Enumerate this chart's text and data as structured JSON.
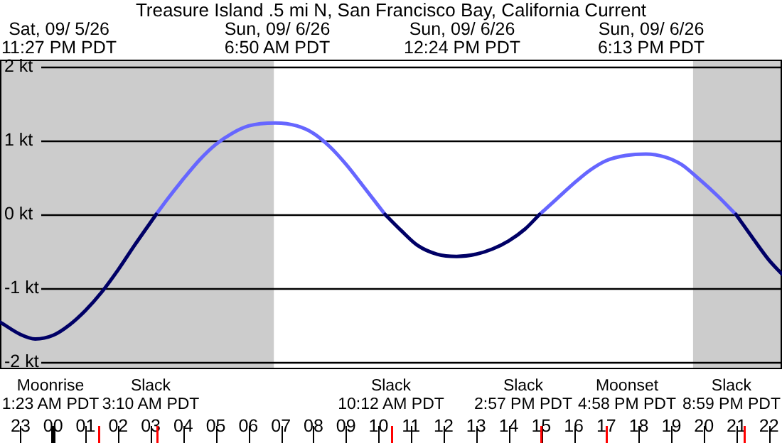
{
  "chart_data": {
    "type": "line",
    "title": "Treasure Island .5 mi N, San Francisco Bay, California Current",
    "series": [
      {
        "color": "#000066",
        "x": [
          "--09-05T22:22",
          "--09-05T23:00",
          "--09-05T23:27",
          "--09-06T00:00",
          "--09-06T00:30",
          "--09-06T01:00",
          "--09-06T01:30",
          "--09-06T02:00",
          "--09-06T02:30",
          "--09-06T03:10",
          "--09-06T06:00",
          "--09-06T10:12",
          "--09-06T10:42",
          "--09-06T11:12",
          "--09-06T11:48",
          "--09-06T12:24",
          "--09-06T13:00",
          "--09-06T13:30",
          "--09-06T14:00",
          "--09-06T14:30",
          "--09-06T14:57",
          "--09-06T18:00",
          "--09-06T20:59",
          "--09-06T21:30",
          "--09-06T22:00",
          "--09-06T22:24"
        ],
        "values": [
          -1.46,
          -1.63,
          -1.69,
          -1.64,
          -1.5,
          -1.3,
          -1.05,
          -0.75,
          -0.42,
          0,
          null,
          0,
          -0.22,
          -0.42,
          -0.54,
          -0.57,
          -0.54,
          -0.47,
          -0.36,
          -0.2,
          0,
          null,
          0,
          -0.32,
          -0.62,
          -0.81
        ]
      },
      {
        "color": "#6666ff",
        "x": [
          "--09-06T03:10",
          "--09-06T03:30",
          "--09-06T04:00",
          "--09-06T04:30",
          "--09-06T05:00",
          "--09-06T05:30",
          "--09-06T06:00",
          "--09-06T06:50",
          "--09-06T07:30",
          "--09-06T08:00",
          "--09-06T08:30",
          "--09-06T09:00",
          "--09-06T09:30",
          "--09-06T10:12",
          "--09-06T12:00",
          "--09-06T14:57",
          "--09-06T15:30",
          "--09-06T16:00",
          "--09-06T16:30",
          "--09-06T17:00",
          "--09-06T17:36",
          "--09-06T18:13",
          "--09-06T18:48",
          "--09-06T19:18",
          "--09-06T19:48",
          "--09-06T20:24",
          "--09-06T20:59"
        ],
        "values": [
          0,
          0.2,
          0.48,
          0.74,
          0.95,
          1.1,
          1.2,
          1.24,
          1.2,
          1.1,
          0.92,
          0.68,
          0.4,
          0,
          null,
          0,
          0.22,
          0.42,
          0.6,
          0.73,
          0.8,
          0.82,
          0.78,
          0.68,
          0.5,
          0.26,
          0
        ]
      }
    ],
    "xlim": [
      "--09-05T22:22",
      "--09-06T22:24"
    ],
    "xticks": [
      {
        "value": "--09-05T23:00",
        "label": "23"
      },
      {
        "value": "--09-06T00:00",
        "label": "00"
      },
      {
        "value": "--09-06T01:00",
        "label": "01"
      },
      {
        "value": "--09-06T02:00",
        "label": "02"
      },
      {
        "value": "--09-06T03:00",
        "label": "03"
      },
      {
        "value": "--09-06T04:00",
        "label": "04"
      },
      {
        "value": "--09-06T05:00",
        "label": "05"
      },
      {
        "value": "--09-06T06:00",
        "label": "06"
      },
      {
        "value": "--09-06T07:00",
        "label": "07"
      },
      {
        "value": "--09-06T08:00",
        "label": "08"
      },
      {
        "value": "--09-06T09:00",
        "label": "09"
      },
      {
        "value": "--09-06T10:00",
        "label": "10"
      },
      {
        "value": "--09-06T11:00",
        "label": "11"
      },
      {
        "value": "--09-06T12:00",
        "label": "12"
      },
      {
        "value": "--09-06T13:00",
        "label": "13"
      },
      {
        "value": "--09-06T14:00",
        "label": "14"
      },
      {
        "value": "--09-06T15:00",
        "label": "15"
      },
      {
        "value": "--09-06T16:00",
        "label": "16"
      },
      {
        "value": "--09-06T17:00",
        "label": "17"
      },
      {
        "value": "--09-06T18:00",
        "label": "18"
      },
      {
        "value": "--09-06T19:00",
        "label": "19"
      },
      {
        "value": "--09-06T20:00",
        "label": "20"
      },
      {
        "value": "--09-06T21:00",
        "label": "21"
      },
      {
        "value": "--09-06T22:00",
        "label": "22"
      }
    ],
    "ylim": [
      -2.1,
      2.1
    ],
    "yticks": [
      {
        "value": -2,
        "label": "-2 kt"
      },
      {
        "value": -1,
        "label": "-1 kt"
      },
      {
        "value": 0,
        "label": "0 kt"
      },
      {
        "value": 1,
        "label": "1 kt"
      },
      {
        "value": 2,
        "label": "2 kt"
      }
    ],
    "grid": "y",
    "bands": [
      {
        "axis": "x",
        "from": "--09-05T22:22",
        "to": "--09-06T06:47",
        "color": "#cccccc"
      },
      {
        "axis": "x",
        "from": "--09-06T19:40",
        "to": "--09-06T22:24",
        "color": "#cccccc"
      }
    ],
    "annotations": [
      "Sat, 09/ 5/26\n11:27 PM PDT",
      "Sun, 09/ 6/26\n6:50 AM PDT",
      "Sun, 09/ 6/26\n12:24 PM PDT",
      "Sun, 09/ 6/26\n6:13 PM PDT",
      "Moonrise\n1:23 AM PDT",
      "Slack\n3:10 AM PDT",
      "Slack\n10:12 AM PDT",
      "Slack\n2:57 PM PDT",
      "Moonset\n4:58 PM PDT",
      "Slack\n8:59 PM PDT"
    ]
  }
}
